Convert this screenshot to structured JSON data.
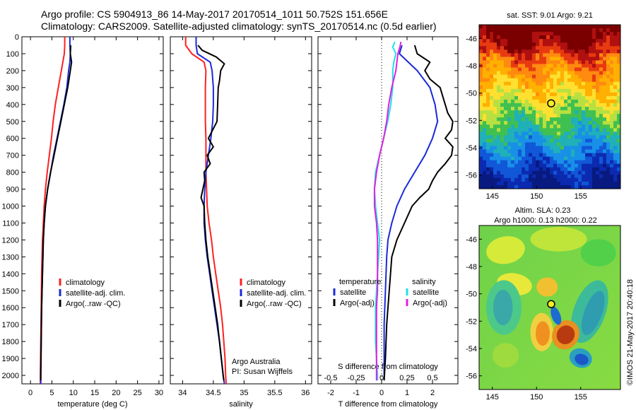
{
  "header": {
    "line1": "Argo profile: CS 5904913_86 14-May-2017 20170514_1011 50.752S 151.656E",
    "line2": "Climatology: CARS2009. Satellite-adjusted climatology: synTS_20170514.nc (0.5d earlier)"
  },
  "credit": "©IMOS 21-May-2017 20:40:18",
  "colors": {
    "climatology": "#ff2020",
    "satellite": "#1a2bd8",
    "argo": "#000000",
    "satellite_salinity": "#22e0e8",
    "argo_salinity": "#e020e0"
  },
  "chart_data": [
    {
      "type": "line",
      "id": "temperature",
      "xlabel": "temperature (deg C)",
      "xlim": [
        -2,
        31
      ],
      "xticks": [
        0,
        5,
        10,
        15,
        20,
        25,
        30
      ],
      "ylim": [
        2050,
        0
      ],
      "yticks": [
        0,
        100,
        200,
        300,
        400,
        500,
        600,
        700,
        800,
        900,
        1000,
        1100,
        1200,
        1300,
        1400,
        1500,
        1600,
        1700,
        1800,
        1900,
        2000
      ],
      "legend": [
        "climatology",
        "satellite-adj. clim.",
        "Argo(..raw -QC)"
      ],
      "series": [
        {
          "key": "climatology",
          "depth": [
            0,
            50,
            100,
            200,
            300,
            400,
            500,
            600,
            700,
            800,
            900,
            1000,
            1100,
            1200,
            1300,
            1400,
            1600,
            1800,
            2000,
            2050
          ],
          "values": [
            8.0,
            8.0,
            7.9,
            7.2,
            6.5,
            5.8,
            5.3,
            4.9,
            4.4,
            3.9,
            3.5,
            3.2,
            3.0,
            2.8,
            2.7,
            2.6,
            2.5,
            2.4,
            2.3,
            2.3
          ]
        },
        {
          "key": "satellite",
          "depth": [
            0,
            50,
            100,
            150,
            200,
            300,
            400,
            500,
            600,
            700,
            800,
            900,
            1000,
            1100,
            1200,
            1300,
            1400,
            1600,
            1800,
            2000,
            2050
          ],
          "values": [
            9.2,
            9.2,
            9.3,
            9.2,
            8.9,
            8.5,
            7.8,
            7.0,
            6.2,
            5.4,
            4.7,
            4.0,
            3.5,
            3.2,
            3.0,
            2.9,
            2.8,
            2.6,
            2.5,
            2.4,
            2.4
          ]
        },
        {
          "key": "argo",
          "depth": [
            50,
            100,
            150,
            200,
            250,
            300,
            400,
            500,
            600,
            700,
            800,
            900,
            1000,
            1100,
            1200,
            1300,
            1400,
            1500,
            1600,
            1800,
            2000,
            2030
          ],
          "values": [
            9.4,
            9.3,
            9.6,
            9.3,
            9.0,
            8.7,
            7.9,
            7.1,
            6.3,
            5.5,
            4.7,
            4.0,
            3.5,
            3.2,
            3.0,
            2.9,
            2.8,
            2.7,
            2.6,
            2.5,
            2.4,
            2.4
          ]
        }
      ]
    },
    {
      "type": "line",
      "id": "salinity",
      "xlabel": "salinity",
      "xlim": [
        33.8,
        36.1
      ],
      "xticks": [
        34,
        34.5,
        35,
        35.5,
        36
      ],
      "ylim": [
        2050,
        0
      ],
      "legend": [
        "climatology",
        "satellite-adj. clim.",
        "Argo(..raw -QC)"
      ],
      "annotation": [
        "Argo Australia",
        "PI: Susan Wijffels"
      ],
      "series": [
        {
          "key": "climatology",
          "depth": [
            0,
            50,
            100,
            150,
            200,
            300,
            400,
            500,
            600,
            700,
            800,
            900,
            1000,
            1100,
            1200,
            1300,
            1400,
            1500,
            1600,
            1700,
            1800,
            1900,
            2000,
            2050
          ],
          "values": [
            34.05,
            34.05,
            34.15,
            34.35,
            34.38,
            34.37,
            34.37,
            34.37,
            34.38,
            34.38,
            34.38,
            34.39,
            34.4,
            34.43,
            34.47,
            34.5,
            34.54,
            34.58,
            34.62,
            34.65,
            34.67,
            34.69,
            34.7,
            34.71
          ]
        },
        {
          "key": "satellite",
          "depth": [
            0,
            50,
            100,
            150,
            200,
            300,
            400,
            500,
            600,
            700,
            800,
            900,
            1000,
            1100,
            1200,
            1300,
            1400,
            1500,
            1600,
            1700,
            1800,
            1900,
            2000,
            2050
          ],
          "values": [
            34.22,
            34.22,
            34.24,
            34.45,
            34.48,
            34.5,
            34.5,
            34.49,
            34.46,
            34.42,
            34.38,
            34.36,
            34.35,
            34.35,
            34.37,
            34.4,
            34.44,
            34.48,
            34.52,
            34.56,
            34.6,
            34.63,
            34.66,
            34.68
          ]
        },
        {
          "key": "argo",
          "depth": [
            50,
            80,
            120,
            160,
            200,
            260,
            300,
            400,
            500,
            600,
            650,
            700,
            750,
            800,
            850,
            900,
            950,
            1000,
            1100,
            1200,
            1300,
            1400,
            1500,
            1600,
            1700,
            1800,
            1900,
            2000,
            2030
          ],
          "values": [
            34.25,
            34.32,
            34.55,
            34.68,
            34.62,
            34.6,
            34.58,
            34.57,
            34.56,
            34.42,
            34.5,
            34.4,
            34.45,
            34.35,
            34.36,
            34.33,
            34.3,
            34.35,
            34.36,
            34.38,
            34.41,
            34.45,
            34.49,
            34.53,
            34.57,
            34.6,
            34.63,
            34.66,
            34.67
          ]
        }
      ]
    },
    {
      "type": "line",
      "id": "difference",
      "xlabel": "T difference from climatology",
      "xlim": [
        -2.5,
        3.0
      ],
      "xticks": [
        -2,
        -1,
        0,
        1,
        2
      ],
      "top_xlabel": "S difference from climatology",
      "top_xlim": [
        -0.625,
        0.75
      ],
      "top_xticks": [
        -0.5,
        -0.25,
        0,
        0.25,
        0.5
      ],
      "top_xtick_labels": [
        "-0.5",
        "-0.25",
        "0",
        "0.25",
        "0.5"
      ],
      "ylim": [
        2050,
        0
      ],
      "legend": {
        "temperature_title": "temperature",
        "salinity_title": "salinity",
        "temperature_items": [
          "satellite",
          "Argo(-adj)"
        ],
        "salinity_items": [
          "satellite",
          "Argo(-adj)"
        ]
      },
      "series": [
        {
          "key": "satellite",
          "quantity": "T",
          "depth": [
            50,
            100,
            200,
            300,
            400,
            500,
            600,
            700,
            800,
            900,
            1000,
            1100,
            1200,
            1300,
            1500,
            1700,
            1900,
            2000
          ],
          "values": [
            0.8,
            0.7,
            1.4,
            1.9,
            2.1,
            2.2,
            2.0,
            1.7,
            1.3,
            0.9,
            0.6,
            0.4,
            0.25,
            0.2,
            0.15,
            0.1,
            0.1,
            0.1
          ]
        },
        {
          "key": "argo",
          "quantity": "T",
          "depth": [
            50,
            100,
            150,
            200,
            250,
            300,
            400,
            450,
            500,
            550,
            600,
            650,
            700,
            750,
            800,
            850,
            900,
            950,
            1000,
            1100,
            1200,
            1300,
            1500,
            1700,
            1900,
            2030
          ],
          "values": [
            1.3,
            1.4,
            1.9,
            1.7,
            1.9,
            2.3,
            2.5,
            2.6,
            2.8,
            2.75,
            2.5,
            2.8,
            2.75,
            2.5,
            2.2,
            2.0,
            1.85,
            1.5,
            1.2,
            0.9,
            0.6,
            0.4,
            0.3,
            0.2,
            0.15,
            0.1
          ]
        },
        {
          "key": "satellite_salinity",
          "quantity": "S",
          "depth": [
            30,
            60,
            100,
            150,
            200,
            300,
            400,
            500,
            600,
            700,
            800,
            900,
            1000,
            1100,
            1200,
            1300,
            1400,
            1500,
            1600,
            1700,
            1800,
            1900,
            2000,
            2030
          ],
          "values": [
            0.13,
            0.11,
            0.14,
            0.12,
            0.11,
            0.11,
            0.09,
            0.06,
            0.02,
            -0.02,
            -0.06,
            -0.07,
            -0.06,
            -0.04,
            -0.02,
            -0.03,
            -0.04,
            -0.05,
            -0.06,
            -0.06,
            -0.06,
            -0.05,
            -0.04,
            -0.04
          ]
        },
        {
          "key": "argo_salinity",
          "quantity": "S",
          "depth": [
            30,
            60,
            100,
            150,
            200,
            300,
            400,
            500,
            600,
            700,
            800,
            900,
            1000,
            1100,
            1200,
            1300,
            1400,
            1500,
            1600,
            1700,
            1800,
            1900,
            2000,
            2030
          ],
          "values": [
            0.19,
            0.18,
            0.16,
            0.15,
            0.14,
            0.1,
            0.07,
            0.05,
            0.02,
            -0.02,
            -0.05,
            -0.07,
            -0.07,
            -0.05,
            -0.04,
            -0.04,
            -0.04,
            -0.04,
            -0.05,
            -0.05,
            -0.05,
            -0.05,
            -0.05,
            -0.05
          ]
        }
      ]
    },
    {
      "type": "heatmap",
      "id": "sst-map",
      "title": "sat. SST: 9.01  Argo: 9.21",
      "xlim": [
        143.5,
        159.5
      ],
      "ylim": [
        -57,
        -45
      ],
      "xticks": [
        145,
        150,
        155
      ],
      "yticks": [
        -46,
        -48,
        -50,
        -52,
        -54,
        -56
      ],
      "marker": {
        "lon": 151.656,
        "lat": -50.752
      }
    },
    {
      "type": "heatmap",
      "id": "sla-map",
      "title": "Altim. SLA: 0.23",
      "subtitle": "Argo h1000: 0.13 h2000: 0.22",
      "xlim": [
        143.5,
        159.5
      ],
      "ylim": [
        -57,
        -45
      ],
      "xticks": [
        145,
        150,
        155
      ],
      "yticks": [
        -46,
        -48,
        -50,
        -52,
        -54,
        -56
      ],
      "marker": {
        "lon": 151.656,
        "lat": -50.752
      }
    }
  ]
}
